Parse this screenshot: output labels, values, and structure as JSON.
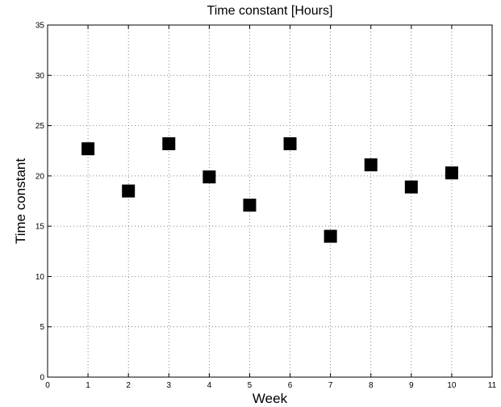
{
  "chart_data": {
    "type": "scatter",
    "title": "Time constant [Hours]",
    "xlabel": "Week",
    "ylabel": "Time constant",
    "xlim": [
      0,
      11
    ],
    "ylim": [
      0,
      35
    ],
    "xticks": [
      0,
      1,
      2,
      3,
      4,
      5,
      6,
      7,
      8,
      9,
      10,
      11
    ],
    "yticks": [
      0,
      5,
      10,
      15,
      20,
      25,
      30,
      35
    ],
    "grid": true,
    "marker": "square",
    "marker_color": "#000000",
    "series": [
      {
        "x": [
          1,
          2,
          3,
          4,
          5,
          6,
          7,
          8,
          9,
          10
        ],
        "y": [
          22.7,
          18.5,
          23.2,
          19.9,
          17.1,
          23.2,
          14.0,
          21.1,
          18.9,
          20.3
        ]
      }
    ]
  }
}
